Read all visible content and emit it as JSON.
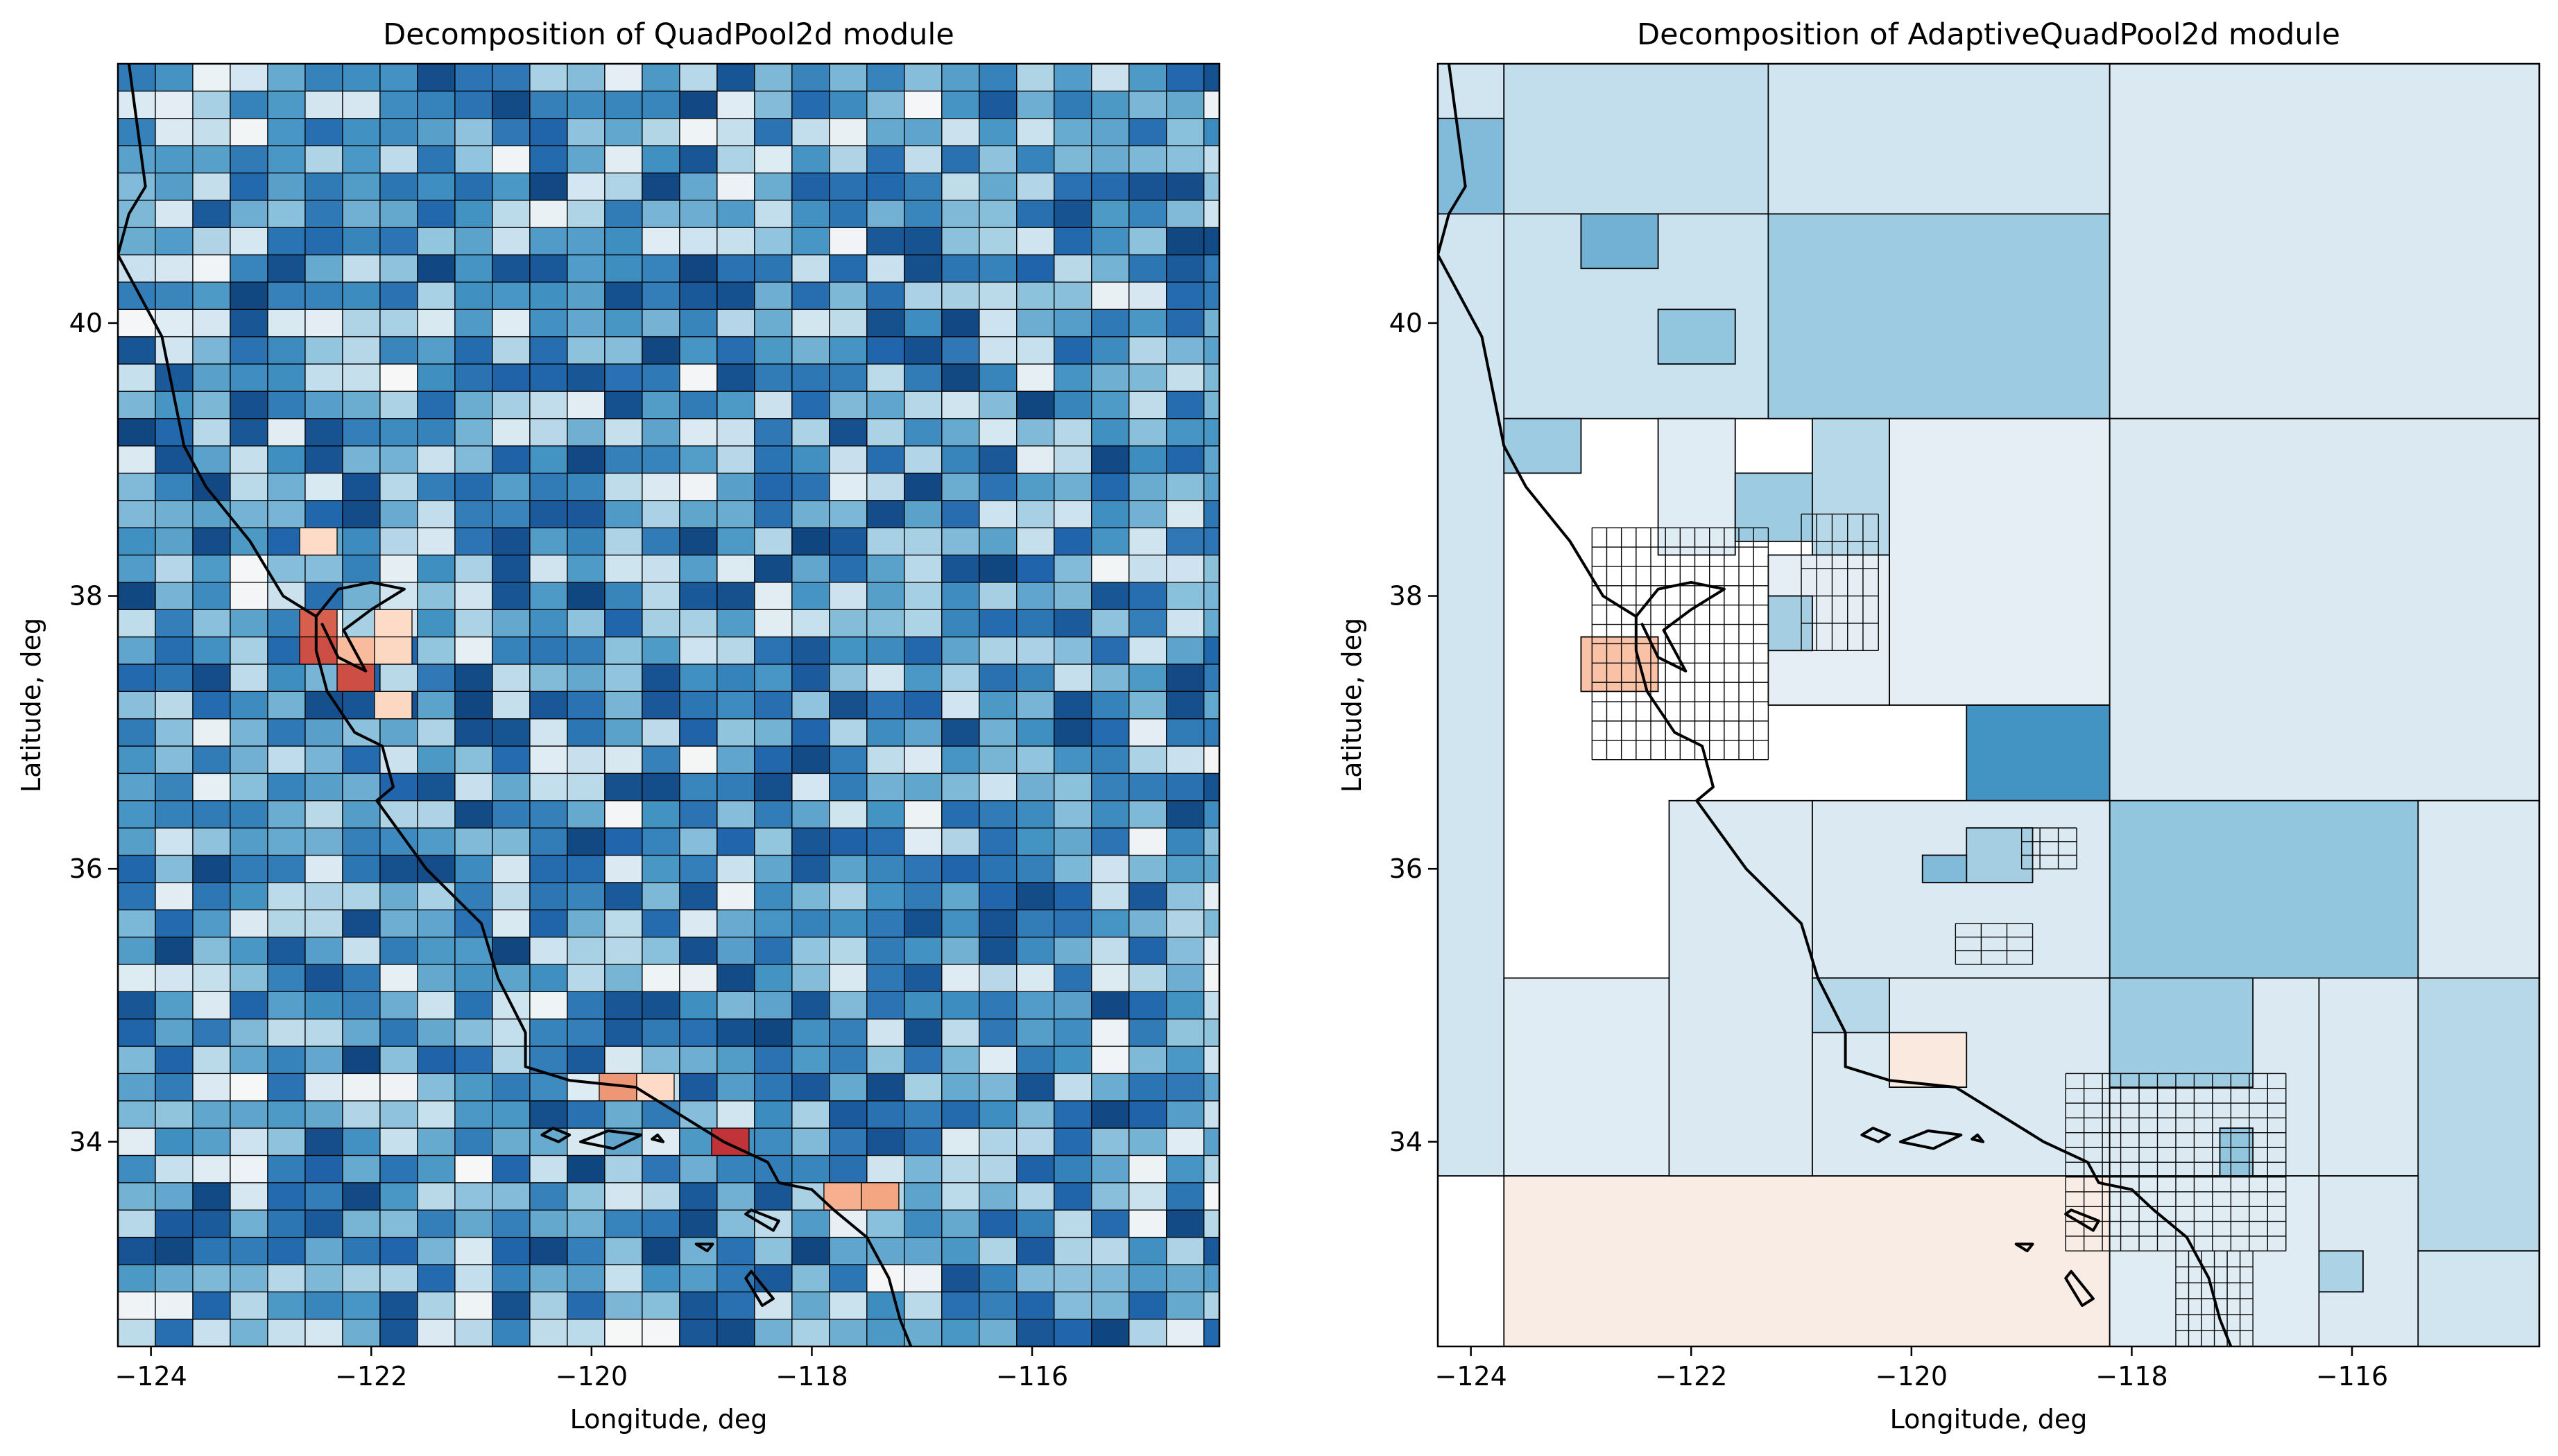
{
  "chart_data": [
    {
      "type": "heatmap",
      "title": "Decomposition of QuadPool2d module",
      "xlabel": "Longitude, deg",
      "ylabel": "Latitude, deg",
      "xlim": [
        -124.3,
        -114.3
      ],
      "ylim": [
        32.5,
        41.9
      ],
      "x_ticks": [
        -124,
        -122,
        -120,
        -118,
        -116
      ],
      "y_ticks": [
        34,
        36,
        38,
        40
      ],
      "x_tick_labels": [
        "−124",
        "−122",
        "−120",
        "−118",
        "−116"
      ],
      "y_tick_labels": [
        "34",
        "36",
        "38",
        "40"
      ],
      "grid": {
        "cell_lon": 0.34,
        "cell_lat": 0.2
      },
      "colormap": "RdBu",
      "value_range": [
        -1,
        1
      ],
      "warm_cells": [
        {
          "lon": [
            -122.65,
            -122.31
          ],
          "lat": [
            37.7,
            37.9
          ],
          "v": 0.6
        },
        {
          "lon": [
            -122.65,
            -122.31
          ],
          "lat": [
            37.5,
            37.7
          ],
          "v": 0.7
        },
        {
          "lon": [
            -122.31,
            -121.97
          ],
          "lat": [
            37.3,
            37.5
          ],
          "v": 0.7
        },
        {
          "lon": [
            -122.31,
            -121.97
          ],
          "lat": [
            37.5,
            37.7
          ],
          "v": 0.25
        },
        {
          "lon": [
            -121.97,
            -121.63
          ],
          "lat": [
            37.7,
            37.9
          ],
          "v": 0.1
        },
        {
          "lon": [
            -121.97,
            -121.63
          ],
          "lat": [
            37.5,
            37.7
          ],
          "v": 0.12
        },
        {
          "lon": [
            -121.97,
            -121.63
          ],
          "lat": [
            37.1,
            37.3
          ],
          "v": 0.12
        },
        {
          "lon": [
            -122.65,
            -122.31
          ],
          "lat": [
            38.3,
            38.5
          ],
          "v": 0.1
        },
        {
          "lon": [
            -119.93,
            -119.59
          ],
          "lat": [
            34.3,
            34.5
          ],
          "v": 0.4
        },
        {
          "lon": [
            -119.59,
            -119.25
          ],
          "lat": [
            34.3,
            34.5
          ],
          "v": 0.1
        },
        {
          "lon": [
            -118.91,
            -118.57
          ],
          "lat": [
            33.9,
            34.1
          ],
          "v": 0.85
        },
        {
          "lon": [
            -117.89,
            -117.55
          ],
          "lat": [
            33.5,
            33.7
          ],
          "v": 0.3
        },
        {
          "lon": [
            -117.55,
            -117.21
          ],
          "lat": [
            33.5,
            33.7
          ],
          "v": 0.35
        }
      ]
    },
    {
      "type": "heatmap",
      "title": "Decomposition of AdaptiveQuadPool2d module",
      "xlabel": "Longitude, deg",
      "ylabel": "Latitude, deg",
      "xlim": [
        -124.3,
        -114.3
      ],
      "ylim": [
        32.5,
        41.9
      ],
      "x_ticks": [
        -124,
        -122,
        -120,
        -118,
        -116
      ],
      "y_ticks": [
        34,
        36,
        38,
        40
      ],
      "x_tick_labels": [
        "−124",
        "−122",
        "−120",
        "−118",
        "−116"
      ],
      "y_tick_labels": [
        "34",
        "36",
        "38",
        "40"
      ],
      "colormap": "RdBu",
      "cells": [
        {
          "lon": [
            -124.3,
            -123.7
          ],
          "lat": [
            33.75,
            41.9
          ],
          "v": -0.08
        },
        {
          "lon": [
            -124.3,
            -123.7
          ],
          "lat": [
            40.8,
            41.5
          ],
          "v": -0.3
        },
        {
          "lon": [
            -123.7,
            -121.3
          ],
          "lat": [
            40.8,
            41.9
          ],
          "v": -0.12
        },
        {
          "lon": [
            -123.7,
            -121.3
          ],
          "lat": [
            39.3,
            40.8
          ],
          "v": -0.1
        },
        {
          "lon": [
            -123.0,
            -122.3
          ],
          "lat": [
            40.4,
            40.8
          ],
          "v": -0.35
        },
        {
          "lon": [
            -122.3,
            -121.6
          ],
          "lat": [
            39.7,
            40.1
          ],
          "v": -0.25
        },
        {
          "lon": [
            -123.7,
            -123.0
          ],
          "lat": [
            38.9,
            39.3
          ],
          "v": -0.22
        },
        {
          "lon": [
            -121.3,
            -118.2
          ],
          "lat": [
            39.3,
            41.9
          ],
          "v": -0.08
        },
        {
          "lon": [
            -121.3,
            -118.2
          ],
          "lat": [
            39.3,
            40.8
          ],
          "v": -0.22
        },
        {
          "lon": [
            -118.2,
            -114.3
          ],
          "lat": [
            39.3,
            41.9
          ],
          "v": -0.06
        },
        {
          "lon": [
            -122.3,
            -121.6
          ],
          "lat": [
            38.3,
            39.3
          ],
          "v": -0.05
        },
        {
          "lon": [
            -121.6,
            -120.9
          ],
          "lat": [
            38.4,
            38.9
          ],
          "v": -0.22
        },
        {
          "lon": [
            -120.9,
            -120.2
          ],
          "lat": [
            38.3,
            39.3
          ],
          "v": -0.15
        },
        {
          "lon": [
            -120.2,
            -119.5
          ],
          "lat": [
            38.0,
            38.3
          ],
          "v": -0.3
        },
        {
          "lon": [
            -121.3,
            -120.2
          ],
          "lat": [
            37.2,
            38.3
          ],
          "v": -0.04
        },
        {
          "lon": [
            -121.3,
            -120.9
          ],
          "lat": [
            37.6,
            38.0
          ],
          "v": -0.2
        },
        {
          "lon": [
            -120.2,
            -118.2
          ],
          "lat": [
            37.2,
            39.3
          ],
          "v": -0.04
        },
        {
          "lon": [
            -119.5,
            -118.2
          ],
          "lat": [
            36.5,
            37.2
          ],
          "v": -0.5
        },
        {
          "lon": [
            -118.2,
            -114.3
          ],
          "lat": [
            36.5,
            39.3
          ],
          "v": -0.06
        },
        {
          "lon": [
            -118.2,
            -115.4
          ],
          "lat": [
            35.2,
            36.5
          ],
          "v": -0.25
        },
        {
          "lon": [
            -115.4,
            -114.3
          ],
          "lat": [
            35.2,
            36.5
          ],
          "v": -0.06
        },
        {
          "lon": [
            -123.7,
            -122.2
          ],
          "lat": [
            33.75,
            35.2
          ],
          "v": -0.05
        },
        {
          "lon": [
            -123.7,
            -118.2
          ],
          "lat": [
            32.5,
            33.75
          ],
          "v": 0.04
        },
        {
          "lon": [
            -122.2,
            -120.9
          ],
          "lat": [
            33.75,
            36.5
          ],
          "v": -0.06
        },
        {
          "lon": [
            -120.9,
            -118.2
          ],
          "lat": [
            35.2,
            36.5
          ],
          "v": -0.06
        },
        {
          "lon": [
            -120.9,
            -118.2
          ],
          "lat": [
            33.75,
            35.2
          ],
          "v": -0.06
        },
        {
          "lon": [
            -120.2,
            -119.5
          ],
          "lat": [
            34.4,
            34.8
          ],
          "v": 0.05
        },
        {
          "lon": [
            -120.9,
            -120.2
          ],
          "lat": [
            34.8,
            35.2
          ],
          "v": -0.15
        },
        {
          "lon": [
            -118.2,
            -116.3
          ],
          "lat": [
            33.75,
            35.2
          ],
          "v": -0.06
        },
        {
          "lon": [
            -118.2,
            -116.9
          ],
          "lat": [
            34.4,
            35.2
          ],
          "v": -0.22
        },
        {
          "lon": [
            -117.2,
            -116.9
          ],
          "lat": [
            33.75,
            34.1
          ],
          "v": -0.25
        },
        {
          "lon": [
            -116.3,
            -115.4
          ],
          "lat": [
            33.75,
            35.2
          ],
          "v": -0.06
        },
        {
          "lon": [
            -115.4,
            -114.3
          ],
          "lat": [
            33.2,
            35.2
          ],
          "v": -0.15
        },
        {
          "lon": [
            -118.2,
            -116.3
          ],
          "lat": [
            32.5,
            33.75
          ],
          "v": -0.05
        },
        {
          "lon": [
            -116.3,
            -115.4
          ],
          "lat": [
            32.5,
            33.75
          ],
          "v": -0.06
        },
        {
          "lon": [
            -116.3,
            -115.9
          ],
          "lat": [
            32.9,
            33.2
          ],
          "v": -0.18
        },
        {
          "lon": [
            -115.4,
            -114.3
          ],
          "lat": [
            32.5,
            33.2
          ],
          "v": -0.08
        },
        {
          "lon": [
            -123.0,
            -122.3
          ],
          "lat": [
            37.3,
            37.7
          ],
          "v": 0.22
        },
        {
          "lon": [
            -119.5,
            -118.9
          ],
          "lat": [
            35.9,
            36.3
          ],
          "v": -0.2
        },
        {
          "lon": [
            -119.9,
            -119.5
          ],
          "lat": [
            35.9,
            36.1
          ],
          "v": -0.3
        }
      ]
    }
  ]
}
